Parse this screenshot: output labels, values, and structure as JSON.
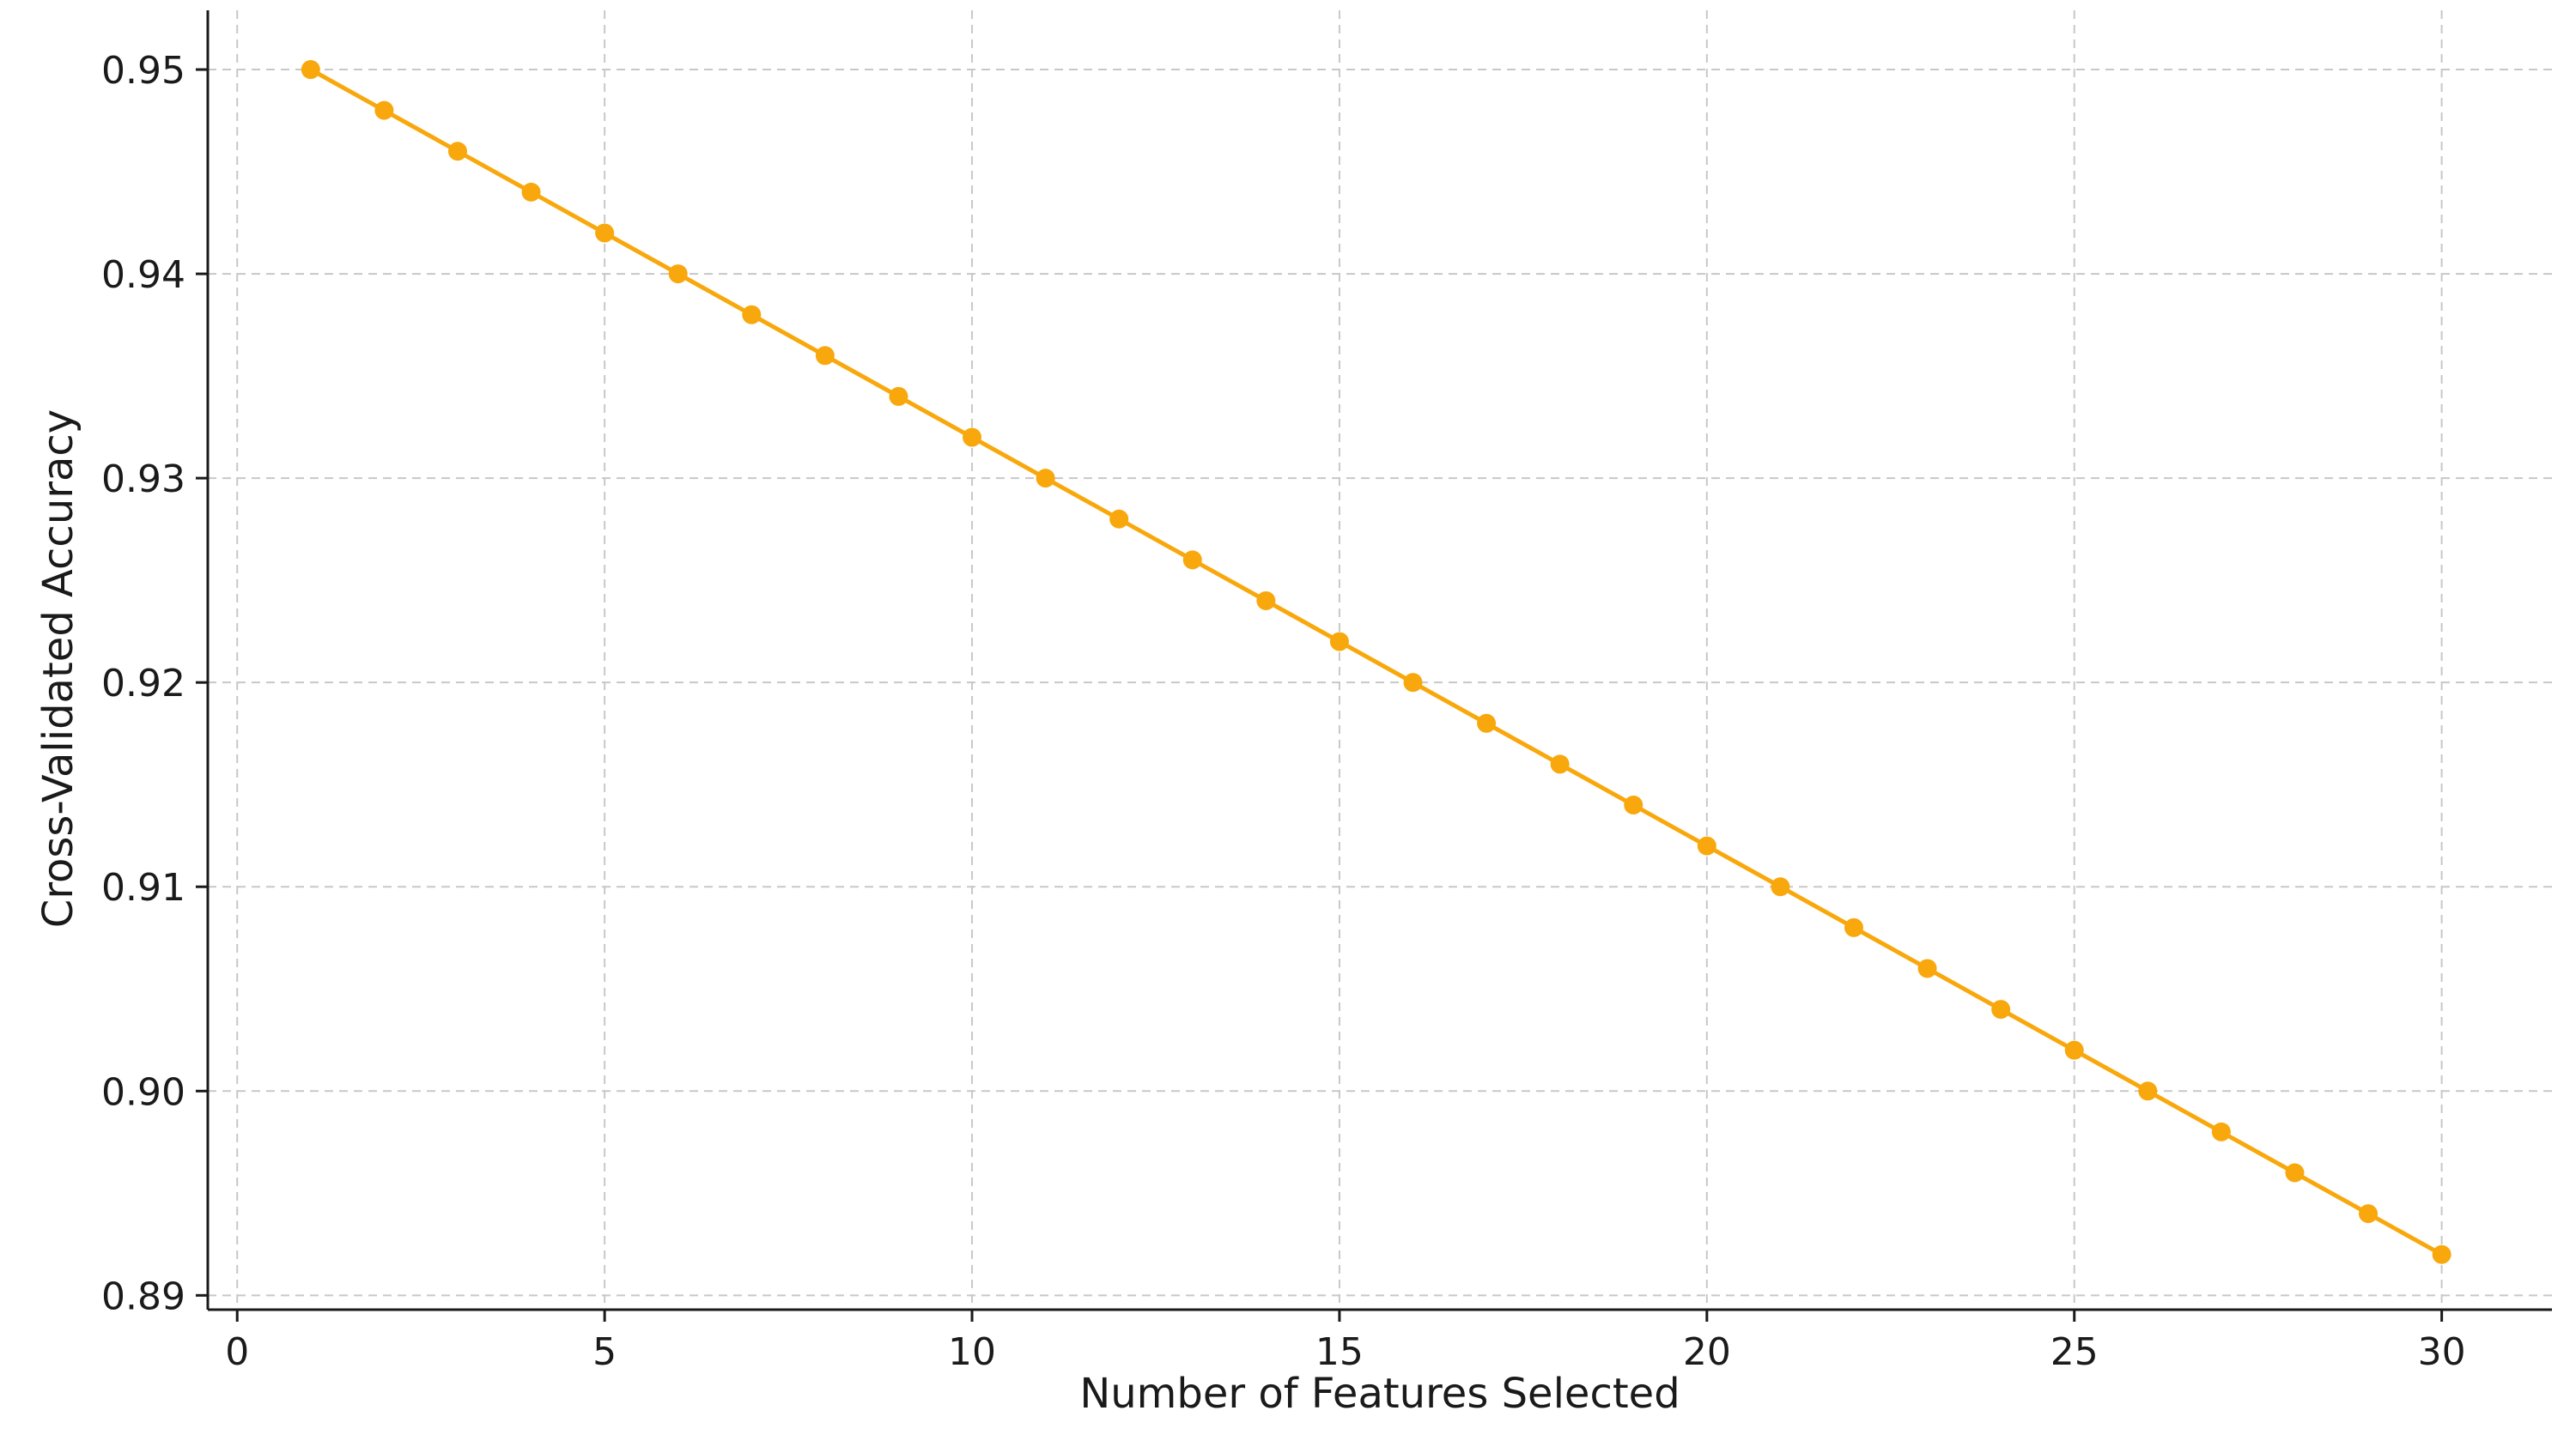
{
  "chart_data": {
    "type": "line",
    "title": "",
    "xlabel": "Number of Features Selected",
    "ylabel": "Cross-Validated Accuracy",
    "xlim": [
      -0.4,
      31.5
    ],
    "ylim": [
      0.8893,
      0.9529
    ],
    "x_ticks": [
      0,
      5,
      10,
      15,
      20,
      25,
      30
    ],
    "x_tick_labels": [
      "0",
      "5",
      "10",
      "15",
      "20",
      "25",
      "30"
    ],
    "y_ticks": [
      0.89,
      0.9,
      0.91,
      0.92,
      0.93,
      0.94,
      0.95
    ],
    "y_tick_labels": [
      "0.89",
      "0.90",
      "0.91",
      "0.92",
      "0.93",
      "0.94",
      "0.95"
    ],
    "grid": true,
    "line_color": "#F8A80C",
    "series": [
      {
        "x": [
          1,
          2,
          3,
          4,
          5,
          6,
          7,
          8,
          9,
          10,
          11,
          12,
          13,
          14,
          15,
          16,
          17,
          18,
          19,
          20,
          21,
          22,
          23,
          24,
          25,
          26,
          27,
          28,
          29,
          30
        ],
        "values": [
          0.95,
          0.948,
          0.946,
          0.944,
          0.942,
          0.94,
          0.938,
          0.936,
          0.934,
          0.932,
          0.93,
          0.928,
          0.926,
          0.924,
          0.922,
          0.92,
          0.918,
          0.916,
          0.914,
          0.912,
          0.91,
          0.908,
          0.906,
          0.904,
          0.902,
          0.9,
          0.898,
          0.896,
          0.894,
          0.892
        ]
      }
    ]
  }
}
